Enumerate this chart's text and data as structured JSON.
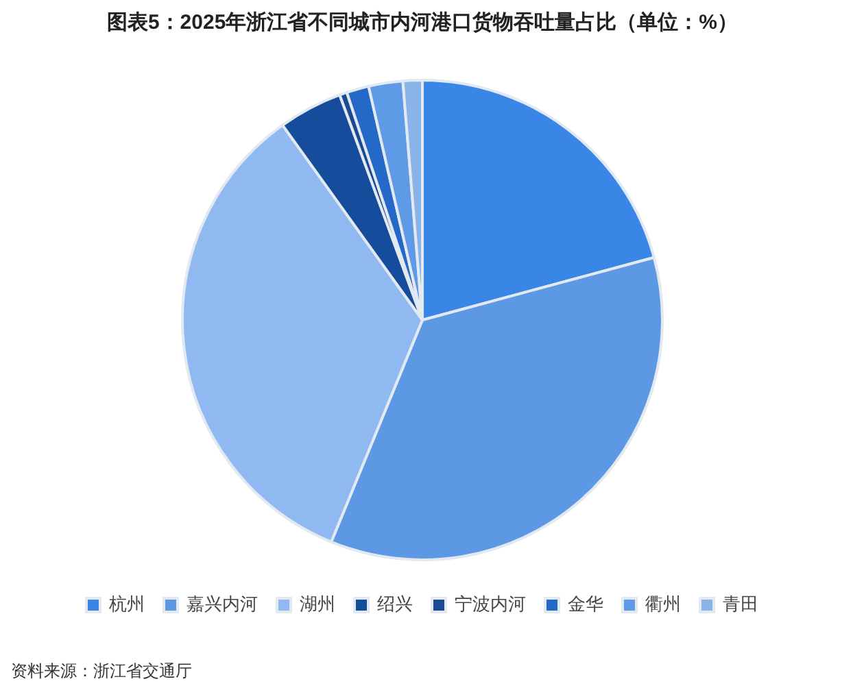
{
  "chart_data": {
    "type": "pie",
    "title": "图表5：2025年浙江省不同城市内河港口货物吞吐量占比（单位：%）",
    "categories": [
      "杭州",
      "嘉兴内河",
      "湖州",
      "绍兴",
      "宁波内河",
      "金华",
      "衢州",
      "青田"
    ],
    "values": [
      20.8,
      35.4,
      33.9,
      4.3,
      0.5,
      1.5,
      2.3,
      1.3
    ],
    "colors": [
      "#3a86e6",
      "#5d98e4",
      "#8fb9f0",
      "#164c9c",
      "#1a4a94",
      "#2468c8",
      "#5e9ae6",
      "#8ab3ea"
    ],
    "legend": "bottom",
    "annotations": [
      "资料来源：浙江省交通厅"
    ]
  }
}
